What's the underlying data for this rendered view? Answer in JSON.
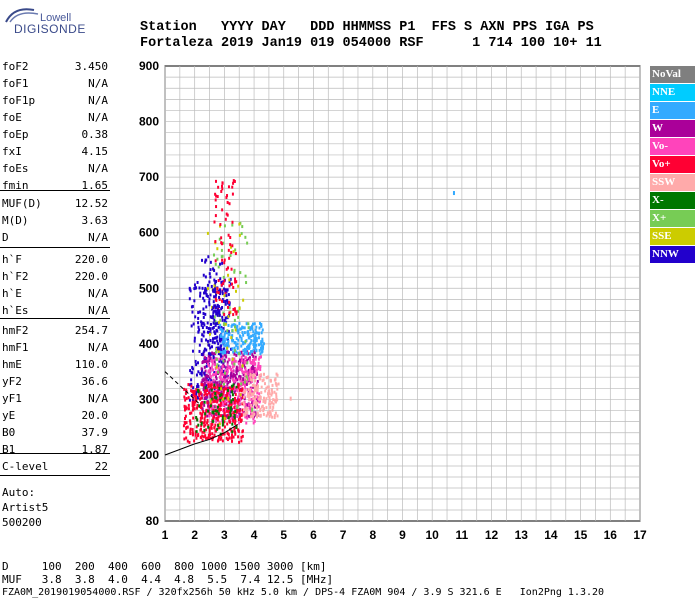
{
  "logo": {
    "line1": "Lowell",
    "line2": "DIGISONDE"
  },
  "header": {
    "row1": "Station   YYYY DAY   DDD HHMMSS P1  FFS S AXN PPS IGA PS",
    "row2": "Fortaleza 2019 Jan19 019 054000 RSF      1 714 100 10+ 11"
  },
  "params_group1": [
    {
      "label": "foF2",
      "value": "3.450"
    },
    {
      "label": "foF1",
      "value": "N/A"
    },
    {
      "label": "foF1p",
      "value": "N/A"
    },
    {
      "label": "foE",
      "value": "N/A"
    },
    {
      "label": "foEp",
      "value": "0.38"
    },
    {
      "label": "fxI",
      "value": "4.15"
    },
    {
      "label": "foEs",
      "value": "N/A"
    },
    {
      "label": "fmin",
      "value": "1.65"
    }
  ],
  "params_group2": [
    {
      "label": "MUF(D)",
      "value": "12.52"
    },
    {
      "label": "M(D)",
      "value": "3.63"
    },
    {
      "label": "D",
      "value": "N/A"
    }
  ],
  "params_group3": [
    {
      "label": "h`F",
      "value": "220.0"
    },
    {
      "label": "h`F2",
      "value": "220.0"
    },
    {
      "label": "h`E",
      "value": "N/A"
    },
    {
      "label": "h`Es",
      "value": "N/A"
    }
  ],
  "params_group4": [
    {
      "label": "hmF2",
      "value": "254.7"
    },
    {
      "label": "hmF1",
      "value": "N/A"
    },
    {
      "label": "hmE",
      "value": "110.0"
    },
    {
      "label": "yF2",
      "value": "36.6"
    },
    {
      "label": "yF1",
      "value": "N/A"
    },
    {
      "label": "yE",
      "value": "20.0"
    },
    {
      "label": "B0",
      "value": "37.9"
    },
    {
      "label": "B1",
      "value": "1.87"
    }
  ],
  "params_group5": [
    {
      "label": "C-level",
      "value": "22"
    }
  ],
  "scaler": {
    "line1": "Auto:",
    "line2": "Artist5",
    "line3": "500200"
  },
  "footer": {
    "d_row": "D     100  200  400  600  800 1000 1500 3000 [km]",
    "muf_row": "MUF   3.8  3.8  4.0  4.4  4.8  5.5  7.4 12.5 [MHz]",
    "file_row": "FZA0M_2019019054000.RSF / 320fx256h 50 kHz 5.0 km / DPS-4 FZA0M 904 / 3.9 S 321.6 E   Ion2Png 1.3.20"
  },
  "legend": [
    {
      "label": "NoVal",
      "color": "#7f7f7f"
    },
    {
      "label": "NNE",
      "color": "#00ccff"
    },
    {
      "label": "E",
      "color": "#33aaff"
    },
    {
      "label": "W",
      "color": "#aa0099"
    },
    {
      "label": "Vo-",
      "color": "#ff44bb"
    },
    {
      "label": "Vo+",
      "color": "#ff0033"
    },
    {
      "label": "SSW",
      "color": "#ffaaaa"
    },
    {
      "label": "X-",
      "color": "#007700"
    },
    {
      "label": "X+",
      "color": "#77cc55"
    },
    {
      "label": "SSE",
      "color": "#cccc00"
    },
    {
      "label": "NNW",
      "color": "#2200cc"
    }
  ],
  "chart_data": {
    "type": "scatter",
    "title": "",
    "xlabel": "",
    "ylabel": "",
    "xlim": [
      1,
      17
    ],
    "ylim": [
      80,
      900
    ],
    "x_ticks": [
      "1",
      "2",
      "3",
      "4",
      "5",
      "6",
      "7",
      "8",
      "9",
      "10",
      "11",
      "12",
      "13",
      "14",
      "15",
      "16",
      "17"
    ],
    "y_ticks": [
      "80",
      "200",
      "300",
      "400",
      "500",
      "600",
      "700",
      "800",
      "900"
    ],
    "grid": true,
    "series": [
      {
        "name": "E",
        "points": [
          [
            3.8,
            400
          ],
          [
            4.0,
            410
          ],
          [
            4.2,
            395
          ],
          [
            3.6,
            405
          ],
          [
            10.7,
            675
          ]
        ]
      },
      {
        "name": "NNW",
        "points": [
          [
            2.2,
            410
          ],
          [
            2.5,
            430
          ],
          [
            2.8,
            460
          ],
          [
            3.0,
            500
          ],
          [
            2.6,
            380
          ],
          [
            2.3,
            350
          ]
        ]
      },
      {
        "name": "W",
        "points": [
          [
            2.8,
            330
          ],
          [
            3.2,
            350
          ],
          [
            3.6,
            340
          ],
          [
            2.5,
            310
          ],
          [
            3.9,
            360
          ]
        ]
      },
      {
        "name": "Vo-",
        "points": [
          [
            3.0,
            300
          ],
          [
            3.4,
            320
          ],
          [
            3.8,
            340
          ],
          [
            2.6,
            290
          ]
        ]
      },
      {
        "name": "Vo+",
        "points": [
          [
            2.0,
            240
          ],
          [
            2.4,
            265
          ],
          [
            2.8,
            285
          ],
          [
            3.2,
            300
          ]
        ]
      },
      {
        "name": "SSW",
        "points": [
          [
            4.3,
            305
          ],
          [
            4.7,
            300
          ],
          [
            5.2,
            305
          ],
          [
            4.0,
            320
          ]
        ]
      },
      {
        "name": "X-",
        "points": [
          [
            2.2,
            260
          ],
          [
            2.6,
            280
          ],
          [
            3.2,
            300
          ]
        ]
      },
      {
        "name": "X+",
        "points": [
          [
            3.4,
            290
          ],
          [
            3.9,
            285
          ]
        ]
      },
      {
        "name": "SSE",
        "points": [
          [
            2.5,
            300
          ],
          [
            3.1,
            305
          ]
        ]
      }
    ],
    "profile_line": [
      [
        1.0,
        200
      ],
      [
        2.0,
        220
      ],
      [
        2.5,
        228
      ],
      [
        3.0,
        240
      ],
      [
        3.45,
        255
      ]
    ],
    "dashed_line": [
      [
        1.0,
        350
      ],
      [
        1.4,
        330
      ],
      [
        1.8,
        310
      ],
      [
        2.2,
        290
      ]
    ]
  }
}
